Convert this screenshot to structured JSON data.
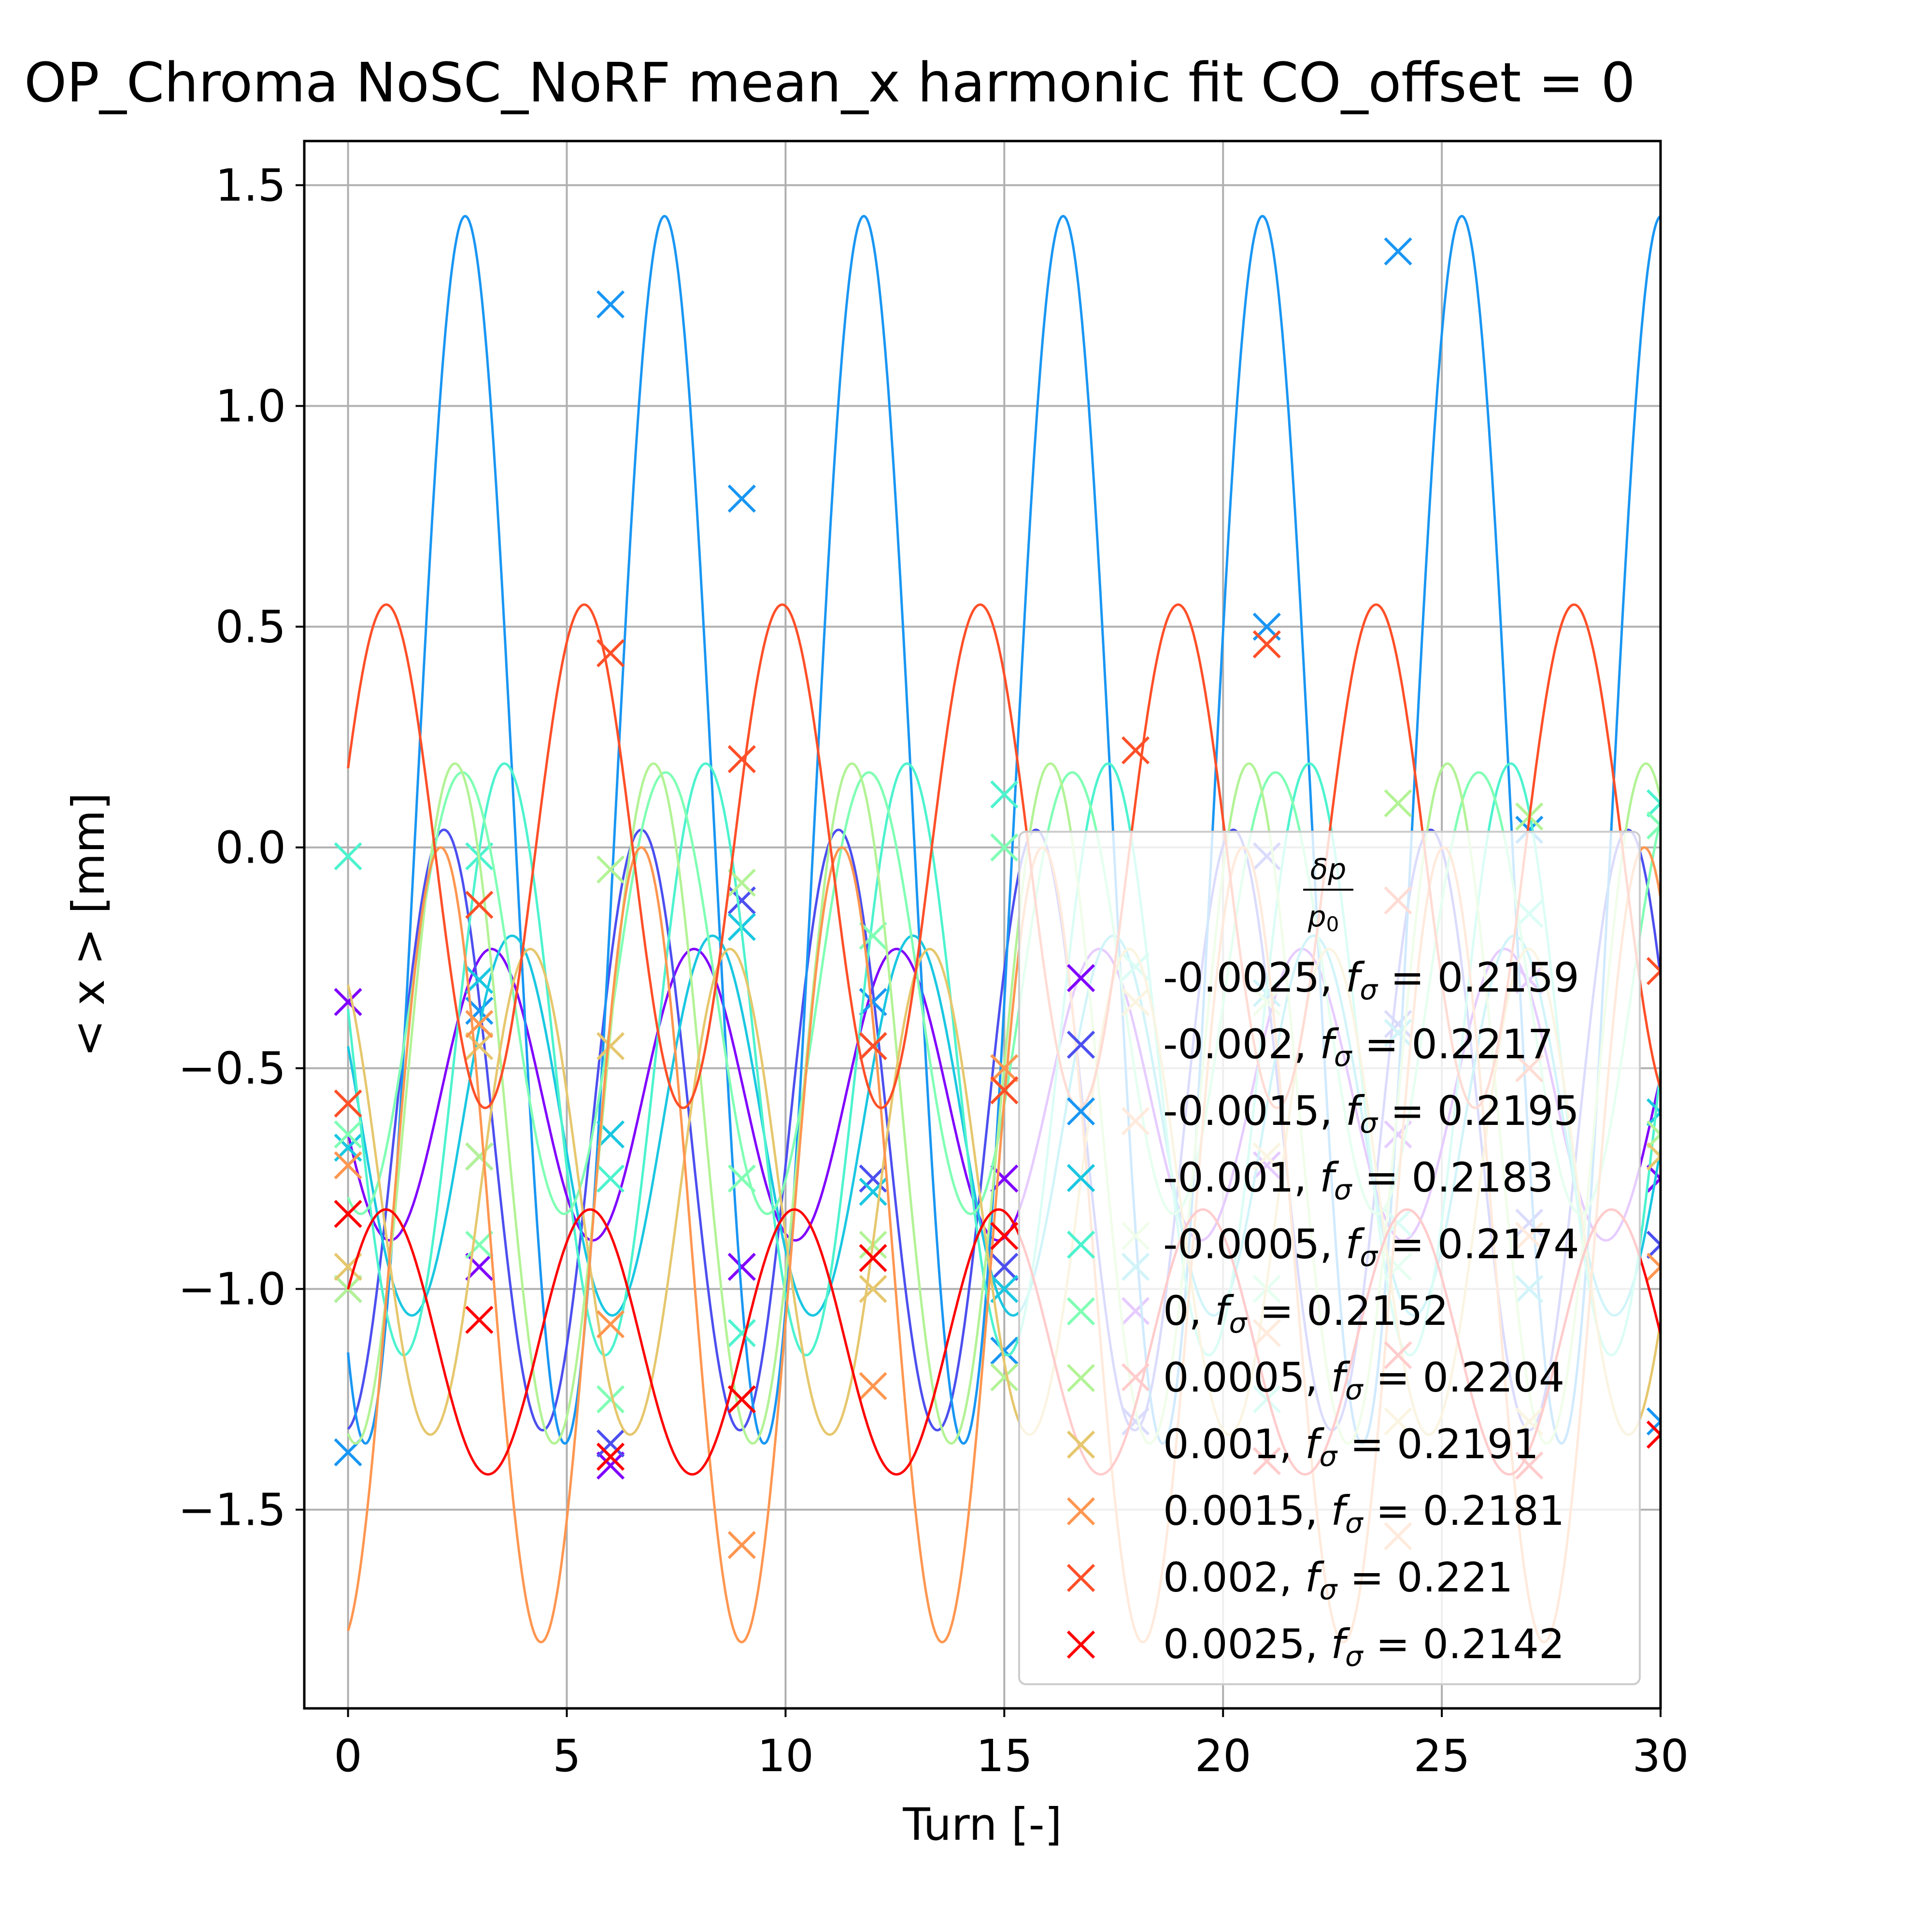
{
  "chart_data": {
    "type": "line",
    "title": "OP_Chroma NoSC_NoRF mean_x harmonic fit CO_offset = 0",
    "xlabel": "Turn [-]",
    "ylabel": "< x >  [mm]",
    "xlim": [
      -1,
      30
    ],
    "ylim": [
      -1.95,
      1.6
    ],
    "x_ticks": [
      0,
      5,
      10,
      15,
      20,
      25,
      30
    ],
    "x_tick_labels": [
      "0",
      "5",
      "10",
      "15",
      "20",
      "25",
      "30"
    ],
    "y_ticks": [
      -1.5,
      -1.0,
      -0.5,
      0.0,
      0.5,
      1.0,
      1.5
    ],
    "y_tick_labels": [
      "−1.5",
      "−1.0",
      "−0.5",
      "0.0",
      "0.5",
      "1.0",
      "1.5"
    ],
    "grid": true,
    "legend": {
      "placement": "lower-right",
      "title_numerator": "δp",
      "title_denominator": "p",
      "title_denominator_sub": "0",
      "marker": "x",
      "freq_symbol": "f",
      "freq_sub": "σ"
    },
    "series": [
      {
        "name": "-0.0025",
        "f": "0.2159",
        "color": "#8000ff",
        "mean": -0.56,
        "amp": 0.33,
        "phase": 1.84,
        "samples": [
          -0.35,
          -0.95,
          -1.4,
          -0.95,
          -0.45,
          -0.75,
          -1.05,
          -0.72,
          -0.65,
          -0.3,
          -0.75
        ]
      },
      {
        "name": "-0.002",
        "f": "0.2217",
        "color": "#4c4fef",
        "mean": -0.64,
        "amp": 0.68,
        "phase": 3.23,
        "samples": [
          -1.0,
          -0.7,
          -1.35,
          -0.12,
          -0.75,
          -0.95,
          -1.3,
          -0.02,
          -0.4,
          -0.85,
          -0.9
        ]
      },
      {
        "name": "-0.0015",
        "f": "0.2195",
        "color": "#1996f3",
        "mean": 0.04,
        "amp": 1.39,
        "phase": 2.59,
        "samples": [
          -1.37,
          -0.37,
          1.23,
          0.79,
          -0.35,
          -1.14,
          -0.95,
          0.5,
          1.35,
          0.04,
          -1.3
        ]
      },
      {
        "name": "-0.001",
        "f": "0.2183",
        "color": "#1ac7e1",
        "mean": -0.63,
        "amp": 0.43,
        "phase": 1.14,
        "samples": [
          -0.68,
          -0.3,
          -0.65,
          -0.18,
          -0.78,
          -1.0,
          -0.95,
          -0.33,
          -0.42,
          -1.0,
          -0.6
        ]
      },
      {
        "name": "-0.0005",
        "f": "0.2174",
        "color": "#4df3ce",
        "mean": -0.48,
        "amp": 0.67,
        "phase": 1.4,
        "samples": [
          -0.02,
          -0.02,
          -0.75,
          -1.1,
          -0.45,
          0.12,
          -0.27,
          -1.25,
          -0.85,
          -0.15,
          0.1
        ]
      },
      {
        "name": "0",
        "f": "0.2152",
        "color": "#80ffb4",
        "mean": -0.33,
        "amp": 0.5,
        "phase": 2.75,
        "samples": [
          -0.65,
          -0.9,
          -1.25,
          -0.75,
          -0.2,
          0.0,
          -0.35,
          -1.0,
          -0.95,
          -0.5,
          0.05
        ]
      },
      {
        "name": "0.0005",
        "f": "0.2204",
        "color": "#b3f396",
        "mean": -0.58,
        "amp": 0.77,
        "phase": 2.9,
        "samples": [
          -1.0,
          -0.7,
          -0.05,
          -0.08,
          -0.9,
          -1.2,
          -0.88,
          -0.35,
          0.1,
          0.07,
          -0.65
        ]
      },
      {
        "name": "0.001",
        "f": "0.2191",
        "color": "#e6c76d",
        "mean": -0.78,
        "amp": 0.55,
        "phase": 0.55,
        "samples": [
          -0.95,
          -0.45,
          -0.45,
          -1.25,
          -1.0,
          -0.55,
          -0.35,
          -0.7,
          -1.3,
          -1.3,
          -0.7
        ]
      },
      {
        "name": "0.0015",
        "f": "0.2181",
        "color": "#ff9650",
        "mean": -0.9,
        "amp": 0.9,
        "phase": 3.38,
        "samples": [
          -0.72,
          -0.4,
          -1.08,
          -1.58,
          -1.22,
          -0.5,
          -0.62,
          -1.1,
          -1.56,
          -0.88,
          -0.95
        ]
      },
      {
        "name": "0.002",
        "f": "0.221",
        "color": "#ff4f28",
        "mean": -0.02,
        "amp": 0.57,
        "phase": 5.07,
        "samples": [
          -0.58,
          -0.13,
          0.44,
          0.2,
          -0.45,
          -0.55,
          0.22,
          0.46,
          -0.12,
          -0.5,
          -0.28
        ]
      },
      {
        "name": "0.0025",
        "f": "0.2142",
        "color": "#ff0000",
        "mean": -1.12,
        "amp": 0.3,
        "phase": 5.12,
        "samples": [
          -0.83,
          -1.07,
          -1.38,
          -1.25,
          -0.93,
          -0.88,
          -1.2,
          -1.39,
          -1.15,
          -1.4,
          -1.33
        ]
      }
    ]
  }
}
